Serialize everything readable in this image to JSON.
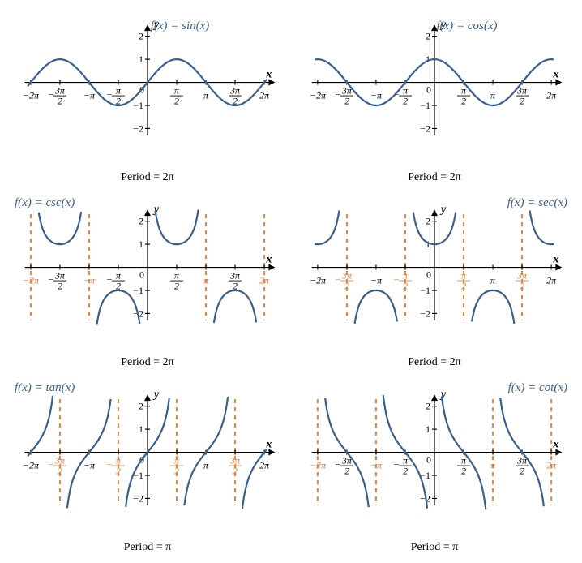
{
  "global": {
    "curve_color": "#3a5f8a",
    "asymptote_color": "#e8813c",
    "axis_color": "#000000",
    "background_color": "#ffffff",
    "tick_fontsize": 12,
    "title_fontsize": 15,
    "caption_fontsize": 14,
    "line_width": 2.2,
    "xlim": [
      -6.6,
      6.6
    ],
    "ylim": [
      -2.3,
      2.3
    ],
    "yticks": [
      -2,
      -1,
      1,
      2
    ],
    "xticks_labels": [
      "−2π",
      "−3π/2",
      "−π",
      "−π/2",
      "π/2",
      "π",
      "3π/2",
      "2π"
    ],
    "xticks_values": [
      -6.283,
      -4.712,
      -3.142,
      -1.571,
      1.571,
      3.142,
      4.712,
      6.283
    ],
    "x_axis_label": "x",
    "y_axis_label": "y"
  },
  "panels": [
    {
      "id": "sin",
      "title": "f(x) = sin(x)",
      "caption": "Period = 2π",
      "type": "sin",
      "asymptotes": []
    },
    {
      "id": "cos",
      "title": "f(x) = cos(x)",
      "caption": "Period = 2π",
      "type": "cos",
      "asymptotes": []
    },
    {
      "id": "csc",
      "title": "f(x) = csc(x)",
      "caption": "Period = 2π",
      "type": "csc",
      "asymptotes": [
        -6.283,
        -3.142,
        0,
        3.142,
        6.283
      ]
    },
    {
      "id": "sec",
      "title": "f(x) = sec(x)",
      "caption": "Period = 2π",
      "type": "sec",
      "asymptotes": [
        -4.712,
        -1.571,
        1.571,
        4.712
      ]
    },
    {
      "id": "tan",
      "title": "f(x) = tan(x)",
      "caption": "Period = π",
      "type": "tan",
      "asymptotes": [
        -4.712,
        -1.571,
        1.571,
        4.712
      ]
    },
    {
      "id": "cot",
      "title": "f(x) = cot(x)",
      "caption": "Period = π",
      "type": "cot",
      "asymptotes": [
        -6.283,
        -3.142,
        0,
        3.142,
        6.283
      ]
    }
  ]
}
